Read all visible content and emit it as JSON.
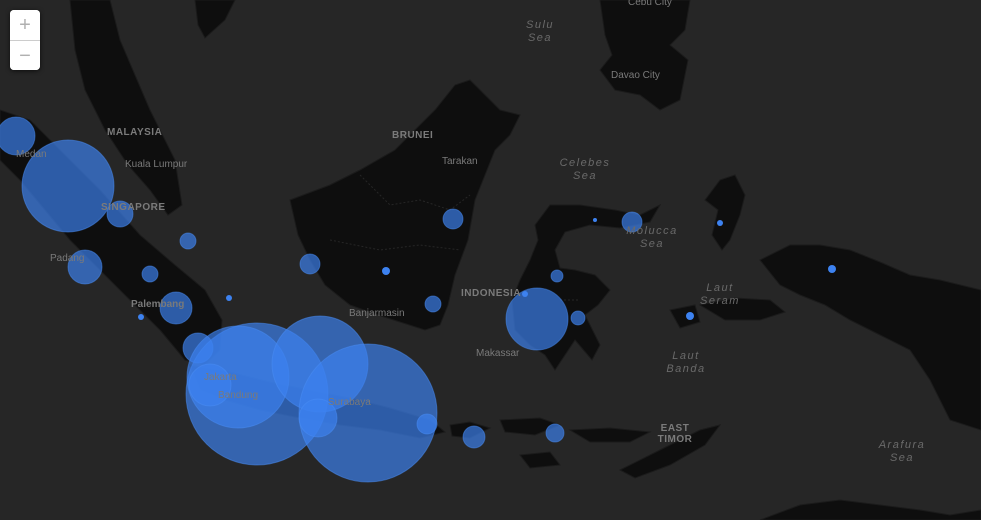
{
  "map": {
    "zoom_controls": {
      "zoom_in": "+",
      "zoom_out": "−"
    },
    "labels": {
      "countries": [
        "MALAYSIA",
        "BRUNEI",
        "SINGAPORE",
        "INDONESIA",
        "EAST TIMOR"
      ],
      "seas": [
        "Sulu Sea",
        "Celebes Sea",
        "Molucca Sea",
        "Laut Seram",
        "Laut Banda",
        "Arafura Sea"
      ],
      "cities": [
        "Cebu City",
        "Davao City",
        "Medan",
        "Kuala Lumpur",
        "Tarakan",
        "Padang",
        "Palembang",
        "Banjarmasin",
        "Makassar",
        "Jakarta",
        "Bandung",
        "Surabaya"
      ]
    },
    "colors": {
      "background": "#262626",
      "land": "#0e0e0e",
      "bubble": "#3d82f0",
      "zoom_control": "#ffffff"
    }
  }
}
